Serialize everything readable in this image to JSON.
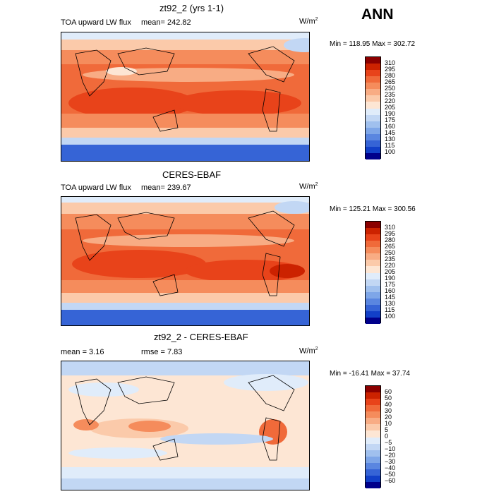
{
  "season": "ANN",
  "panels": [
    {
      "title": "zt92_2 (yrs 1-1)",
      "variable": "TOA upward LW flux",
      "left_text": "",
      "mean_text": "mean= 242.82",
      "units_base": "W/m",
      "units_exp": "2",
      "minmax": "Min = 118.95 Max = 302.72",
      "levels": [
        "310",
        "295",
        "280",
        "265",
        "250",
        "235",
        "220",
        "205",
        "190",
        "175",
        "160",
        "145",
        "130",
        "115",
        "100"
      ],
      "colors": [
        "#8b0000",
        "#cc2200",
        "#e8431a",
        "#f06a3a",
        "#f58c5c",
        "#f8ac84",
        "#fbcaaa",
        "#fde6d4",
        "#e0ecfa",
        "#c2d7f4",
        "#a0c0ee",
        "#7ea6e8",
        "#5a86e0",
        "#3664d6",
        "#1240c8",
        "#00008b"
      ]
    },
    {
      "title": "CERES-EBAF",
      "variable": "TOA upward LW flux",
      "left_text": "",
      "mean_text": "mean= 239.67",
      "units_base": "W/m",
      "units_exp": "2",
      "minmax": "Min = 125.21 Max = 300.56",
      "levels": [
        "310",
        "295",
        "280",
        "265",
        "250",
        "235",
        "220",
        "205",
        "190",
        "175",
        "160",
        "145",
        "130",
        "115",
        "100"
      ],
      "colors": [
        "#8b0000",
        "#cc2200",
        "#e8431a",
        "#f06a3a",
        "#f58c5c",
        "#f8ac84",
        "#fbcaaa",
        "#fde6d4",
        "#e0ecfa",
        "#c2d7f4",
        "#a0c0ee",
        "#7ea6e8",
        "#5a86e0",
        "#3664d6",
        "#1240c8",
        "#00008b"
      ]
    },
    {
      "title": "zt92_2 - CERES-EBAF",
      "variable": "",
      "left_text": "mean =    3.16",
      "mean_text": "rmse =    7.83",
      "units_base": "W/m",
      "units_exp": "2",
      "minmax": "Min = -16.41  Max =  37.74",
      "levels": [
        "60",
        "50",
        "40",
        "30",
        "20",
        "10",
        "5",
        "0",
        "−5",
        "−10",
        "−20",
        "−30",
        "−40",
        "−50",
        "−60"
      ],
      "colors": [
        "#8b0000",
        "#cc2200",
        "#e8431a",
        "#f06a3a",
        "#f58c5c",
        "#f8ac84",
        "#fbcaaa",
        "#fde6d4",
        "#e0ecfa",
        "#c2d7f4",
        "#a0c0ee",
        "#7ea6e8",
        "#5a86e0",
        "#3664d6",
        "#1240c8",
        "#00008b"
      ]
    }
  ]
}
